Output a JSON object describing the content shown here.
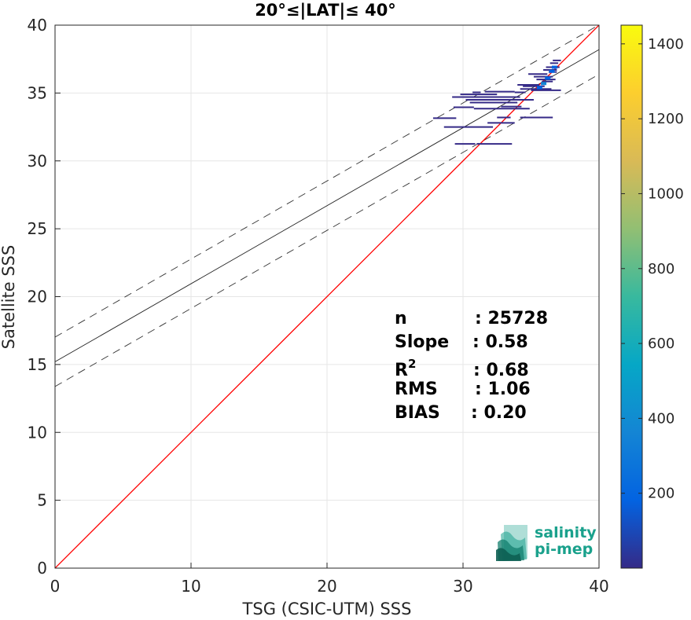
{
  "chart_data": {
    "type": "scatter",
    "title": "20°≤|LAT|≤ 40°",
    "xlabel": "TSG (CSIC-UTM) SSS",
    "ylabel": "Satellite SSS",
    "xlim": [
      0,
      40
    ],
    "ylim": [
      0,
      40
    ],
    "xticks": [
      "0",
      "10",
      "20",
      "30",
      "40"
    ],
    "yticks": [
      "0",
      "5",
      "10",
      "15",
      "20",
      "25",
      "30",
      "35",
      "40"
    ],
    "grid": true,
    "identity_line": {
      "x": [
        0,
        40
      ],
      "y": [
        0,
        40
      ],
      "color": "#ff0000"
    },
    "regression": {
      "slope": 0.575,
      "intercept": 15.2,
      "band_offset": 1.82
    },
    "colorbar": {
      "ticks": [
        "200",
        "400",
        "600",
        "800",
        "1000",
        "1200",
        "1400"
      ],
      "tick_values": [
        200,
        400,
        600,
        800,
        1000,
        1200,
        1400
      ],
      "range": [
        0,
        1450
      ],
      "colormap": [
        "#352a87",
        "#0363e1",
        "#1485d4",
        "#06a7c6",
        "#38b99e",
        "#92bf73",
        "#d9ba56",
        "#fcce2e",
        "#f9fb0e"
      ]
    },
    "segments": [
      {
        "x0": 27.8,
        "x1": 29.5,
        "y": 33.15
      },
      {
        "x0": 28.6,
        "x1": 32.2,
        "y": 32.5
      },
      {
        "x0": 30.2,
        "x1": 35.2,
        "y": 34.5
      },
      {
        "x0": 29.2,
        "x1": 34.2,
        "y": 34.7
      },
      {
        "x0": 30.5,
        "x1": 34.0,
        "y": 34.3
      },
      {
        "x0": 29.8,
        "x1": 32.5,
        "y": 34.9
      },
      {
        "x0": 31.6,
        "x1": 33.8,
        "y": 35.1
      },
      {
        "x0": 30.7,
        "x1": 31.3,
        "y": 35.05
      },
      {
        "x0": 30.8,
        "x1": 34.9,
        "y": 33.85
      },
      {
        "x0": 29.3,
        "x1": 30.8,
        "y": 33.95
      },
      {
        "x0": 34.2,
        "x1": 36.6,
        "y": 33.2
      },
      {
        "x0": 32.5,
        "x1": 33.5,
        "y": 33.2
      },
      {
        "x0": 31.8,
        "x1": 33.8,
        "y": 32.8
      },
      {
        "x0": 29.4,
        "x1": 30.9,
        "y": 31.25
      },
      {
        "x0": 31.0,
        "x1": 33.6,
        "y": 31.25
      },
      {
        "x0": 32.8,
        "x1": 34.3,
        "y": 34.0
      },
      {
        "x0": 34.2,
        "x1": 36.5,
        "y": 35.3
      },
      {
        "x0": 34.0,
        "x1": 35.6,
        "y": 35.6
      },
      {
        "x0": 35.0,
        "x1": 37.2,
        "y": 35.2
      },
      {
        "x0": 34.4,
        "x1": 36.0,
        "y": 35.5
      },
      {
        "x0": 33.8,
        "x1": 34.6,
        "y": 35.05
      },
      {
        "x0": 35.4,
        "x1": 36.8,
        "y": 36.0
      },
      {
        "x0": 34.8,
        "x1": 36.2,
        "y": 36.4
      },
      {
        "x0": 35.2,
        "x1": 36.6,
        "y": 36.2
      },
      {
        "x0": 35.9,
        "x1": 36.9,
        "y": 36.7
      },
      {
        "x0": 36.1,
        "x1": 37.1,
        "y": 36.9
      },
      {
        "x0": 36.4,
        "x1": 37.0,
        "y": 37.2
      },
      {
        "x0": 36.6,
        "x1": 37.2,
        "y": 37.4
      },
      {
        "x0": 35.8,
        "x1": 36.6,
        "y": 35.85
      },
      {
        "x0": 36.3,
        "x1": 36.9,
        "y": 36.55
      }
    ],
    "hot_points": [
      {
        "x": 35.9,
        "y": 35.7,
        "count": 300
      },
      {
        "x": 36.2,
        "y": 36.1,
        "count": 250
      },
      {
        "x": 36.5,
        "y": 36.6,
        "count": 220
      },
      {
        "x": 36.7,
        "y": 36.9,
        "count": 180
      },
      {
        "x": 35.6,
        "y": 35.4,
        "count": 150
      }
    ]
  },
  "stats": {
    "rows": [
      {
        "label": "n",
        "value": ": 25728"
      },
      {
        "label": "Slope",
        "value": ": 0.58"
      },
      {
        "label": "R",
        "sup": "2",
        "value": ": 0.68"
      },
      {
        "label": "RMS",
        "value": ": 1.06"
      },
      {
        "label": "BIAS",
        "value": ": 0.20"
      }
    ]
  },
  "logo": {
    "line1": "salinity",
    "line2": "pi-mep",
    "color": "#1aa18c"
  }
}
